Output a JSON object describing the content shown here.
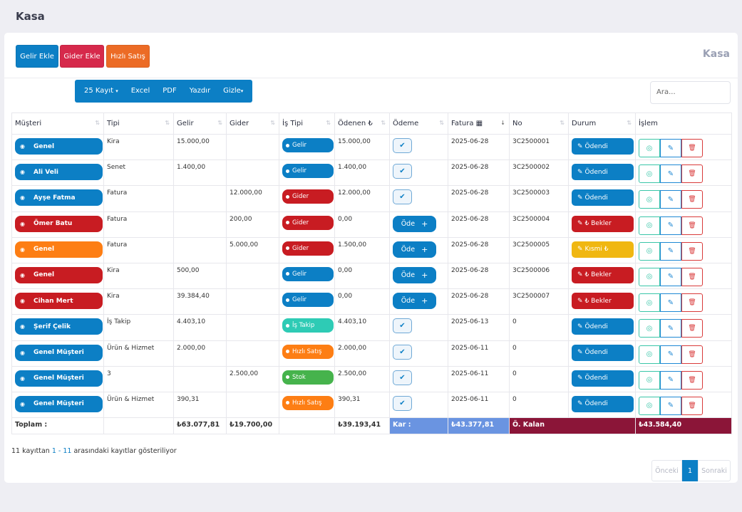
{
  "page": {
    "title": "Kasa"
  },
  "card": {
    "title": "Kasa"
  },
  "actions": {
    "gelir": "Gelir Ekle",
    "gider": "Gider Ekle",
    "hizli": "Hızlı Satış"
  },
  "toolbar": {
    "kayit": "25 Kayıt",
    "excel": "Excel",
    "pdf": "PDF",
    "yazdir": "Yazdır",
    "gizle": "Gizle"
  },
  "search": {
    "placeholder": "Ara..."
  },
  "columns": [
    "Müşteri",
    "Tipi",
    "Gelir",
    "Gider",
    "İş Tipi",
    "Ödenen ₺",
    "Ödeme",
    "Fatura",
    "No",
    "Durum",
    "İşlem"
  ],
  "rows": [
    {
      "musteri": "Genel",
      "musteri_color": "blue",
      "tipi": "Kira",
      "gelir": "15.000,00",
      "gider": "",
      "is_tipi": "Gelir",
      "is_color": "iblue",
      "odenen": "15.000,00",
      "odeme": "check",
      "fatura": "2025-06-28",
      "no": "3C2500001",
      "durum": "Ödendi",
      "durum_color": "d-blue"
    },
    {
      "musteri": "Ali Veli",
      "musteri_color": "blue",
      "tipi": "Senet",
      "gelir": "1.400,00",
      "gider": "",
      "is_tipi": "Gelir",
      "is_color": "iblue",
      "odenen": "1.400,00",
      "odeme": "check",
      "fatura": "2025-06-28",
      "no": "3C2500002",
      "durum": "Ödendi",
      "durum_color": "d-blue"
    },
    {
      "musteri": "Ayşe Fatma",
      "musteri_color": "blue",
      "tipi": "Fatura",
      "gelir": "",
      "gider": "12.000,00",
      "is_tipi": "Gider",
      "is_color": "ored",
      "odenen": "12.000,00",
      "odeme": "check",
      "fatura": "2025-06-28",
      "no": "3C2500003",
      "durum": "Ödendi",
      "durum_color": "d-blue"
    },
    {
      "musteri": "Ömer Batu",
      "musteri_color": "red",
      "tipi": "Fatura",
      "gelir": "",
      "gider": "200,00",
      "is_tipi": "Gider",
      "is_color": "ored",
      "odenen": "0,00",
      "odeme": "ode",
      "fatura": "2025-06-28",
      "no": "3C2500004",
      "durum": "₺ Bekler",
      "durum_color": "d-red"
    },
    {
      "musteri": "Genel",
      "musteri_color": "orange",
      "tipi": "Fatura",
      "gelir": "",
      "gider": "5.000,00",
      "is_tipi": "Gider",
      "is_color": "ored",
      "odenen": "1.500,00",
      "odeme": "ode",
      "fatura": "2025-06-28",
      "no": "3C2500005",
      "durum": "Kısmi ₺",
      "durum_color": "d-yellow"
    },
    {
      "musteri": "Genel",
      "musteri_color": "red",
      "tipi": "Kira",
      "gelir": "500,00",
      "gider": "",
      "is_tipi": "Gelir",
      "is_color": "iblue",
      "odenen": "0,00",
      "odeme": "ode",
      "fatura": "2025-06-28",
      "no": "3C2500006",
      "durum": "₺ Bekler",
      "durum_color": "d-red"
    },
    {
      "musteri": "Cihan Mert",
      "musteri_color": "red",
      "tipi": "Kira",
      "gelir": "39.384,40",
      "gider": "",
      "is_tipi": "Gelir",
      "is_color": "iblue",
      "odenen": "0,00",
      "odeme": "ode",
      "fatura": "2025-06-28",
      "no": "3C2500007",
      "durum": "₺ Bekler",
      "durum_color": "d-red"
    },
    {
      "musteri": "Şerif Çelik",
      "musteri_color": "blue",
      "tipi": "İş Takip",
      "gelir": "4.403,10",
      "gider": "",
      "is_tipi": "İş Takip",
      "is_color": "teal",
      "odenen": "4.403,10",
      "odeme": "check",
      "fatura": "2025-06-13",
      "no": "0",
      "durum": "Ödendi",
      "durum_color": "d-blue"
    },
    {
      "musteri": "Genel Müşteri",
      "musteri_color": "blue",
      "tipi": "Ürün & Hizmet",
      "gelir": "2.000,00",
      "gider": "",
      "is_tipi": "Hızlı Satış",
      "is_color": "oor",
      "odenen": "2.000,00",
      "odeme": "check",
      "fatura": "2025-06-11",
      "no": "0",
      "durum": "Ödendi",
      "durum_color": "d-blue"
    },
    {
      "musteri": "Genel Müşteri",
      "musteri_color": "blue",
      "tipi": "3",
      "gelir": "",
      "gider": "2.500,00",
      "is_tipi": "Stok",
      "is_color": "green",
      "odenen": "2.500,00",
      "odeme": "check",
      "fatura": "2025-06-11",
      "no": "0",
      "durum": "Ödendi",
      "durum_color": "d-blue"
    },
    {
      "musteri": "Genel Müşteri",
      "musteri_color": "blue",
      "tipi": "Ürün & Hizmet",
      "gelir": "390,31",
      "gider": "",
      "is_tipi": "Hızlı Satış",
      "is_color": "oor",
      "odenen": "390,31",
      "odeme": "check",
      "fatura": "2025-06-11",
      "no": "0",
      "durum": "Ödendi",
      "durum_color": "d-blue"
    }
  ],
  "ode_label": "Öde",
  "footer": {
    "toplam": "Toplam :",
    "gelir": "₺63.077,81",
    "gider": "₺19.700,00",
    "odenen": "₺39.193,41",
    "kar_label": "Kar :",
    "kar": "₺43.377,81",
    "kalan_label": "Ö. Kalan",
    "kalan": "₺43.584,40"
  },
  "info": {
    "prefix": "11 kayıttan ",
    "range": "1 - 11",
    "suffix": " arasındaki kayıtlar gösteriliyor"
  },
  "pager": {
    "prev": "Önceki",
    "current": "1",
    "next": "Sonraki"
  },
  "colors": {
    "primary": "#0c7fc5",
    "danger": "#c81c22",
    "warning": "#fd7e14",
    "kar": "#6a94e1",
    "kalan": "#8b1538"
  }
}
